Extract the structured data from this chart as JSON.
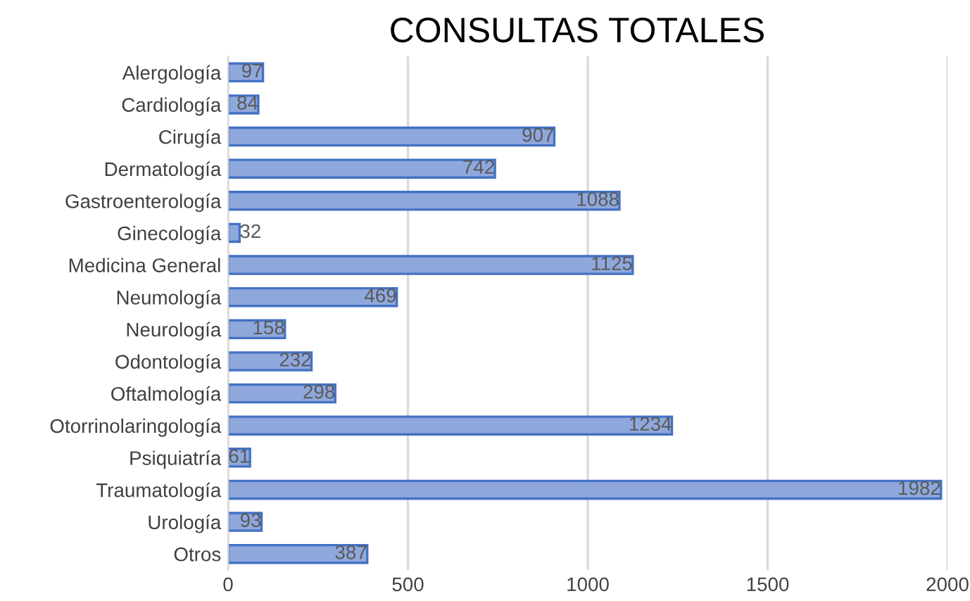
{
  "chart_data": {
    "type": "bar",
    "orientation": "horizontal",
    "title": "CONSULTAS TOTALES",
    "categories": [
      "Alergología",
      "Cardiología",
      "Cirugía",
      "Dermatología",
      "Gastroenterología",
      "Ginecología",
      "Medicina General",
      "Neumología",
      "Neurología",
      "Odontología",
      "Oftalmología",
      "Otorrinolaringología",
      "Psiquiatría",
      "Traumatología",
      "Urología",
      "Otros"
    ],
    "values": [
      97,
      84,
      907,
      742,
      1088,
      32,
      1125,
      469,
      158,
      232,
      298,
      1234,
      61,
      1982,
      93,
      387
    ],
    "color": "#8fa8dc",
    "xlim": [
      0,
      2000
    ],
    "xticks": [
      0,
      500,
      1000,
      1500,
      2000
    ],
    "grid": "x",
    "data_labels": true
  }
}
